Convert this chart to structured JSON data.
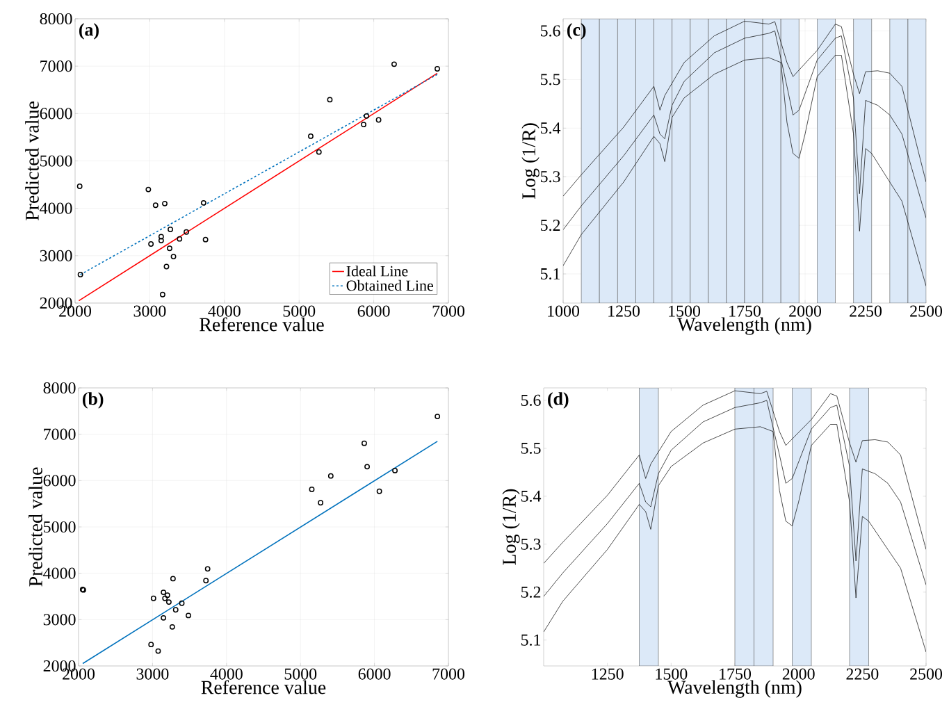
{
  "chart_data": [
    {
      "type": "scatter",
      "xlabel": "Reference value",
      "ylabel": "Predicted value",
      "xlim": [
        2000,
        7000
      ],
      "ylim": [
        2000,
        8000
      ],
      "xticks": [
        2000,
        3000,
        4000,
        5000,
        6000,
        7000
      ],
      "yticks": [
        2000,
        3000,
        4000,
        5000,
        6000,
        7000,
        8000
      ],
      "grid": true,
      "legend": "bottom right",
      "annotations": [
        "(a)"
      ],
      "series": [
        {
          "type": "scatter",
          "color": "#000000",
          "marker": "circle",
          "x": [
            2062,
            2071,
            2981,
            3078,
            3201,
            3016,
            3153,
            3153,
            3276,
            3266,
            3318,
            3224,
            3172,
            3399,
            3490,
            3721,
            3747,
            5156,
            5266,
            5412,
            5864,
            5903,
            6065,
            6273,
            6851
          ],
          "values": [
            4464,
            2601,
            4397,
            4064,
            4100,
            3247,
            3401,
            3319,
            3555,
            3155,
            2981,
            2770,
            2180,
            3355,
            3499,
            4115,
            3340,
            5522,
            5188,
            6292,
            5768,
            5948,
            5866,
            7041,
            6944
          ]
        },
        {
          "type": "line",
          "name": "Ideal Line",
          "color": "#ff0000",
          "line_style": "solid",
          "x": [
            2050,
            6850
          ],
          "values": [
            2050,
            6850
          ]
        },
        {
          "type": "line",
          "name": "Obtained Line",
          "color": "#0072bd",
          "line_style": "dashed",
          "x": [
            2070,
            6850
          ],
          "values": [
            2600,
            6825
          ]
        }
      ]
    },
    {
      "type": "line",
      "xlabel": "Wavelength (nm)",
      "ylabel": "Log (1/R)",
      "xlim": [
        1000,
        2500
      ],
      "ylim": [
        5.04,
        5.625
      ],
      "xticks": [
        1000,
        1250,
        1500,
        1750,
        2000,
        2250,
        2500
      ],
      "yticks": [
        5.1,
        5.2,
        5.3,
        5.4,
        5.5,
        5.6
      ],
      "grid": true,
      "annotations": [
        "(c)"
      ],
      "bands": [
        {
          "axis": "x",
          "from": 1075,
          "to": 1150,
          "color": "#dce9f8"
        },
        {
          "axis": "x",
          "from": 1150,
          "to": 1225,
          "color": "#dce9f8"
        },
        {
          "axis": "x",
          "from": 1225,
          "to": 1300,
          "color": "#dce9f8"
        },
        {
          "axis": "x",
          "from": 1300,
          "to": 1375,
          "color": "#dce9f8"
        },
        {
          "axis": "x",
          "from": 1375,
          "to": 1450,
          "color": "#dce9f8"
        },
        {
          "axis": "x",
          "from": 1450,
          "to": 1525,
          "color": "#dce9f8"
        },
        {
          "axis": "x",
          "from": 1525,
          "to": 1600,
          "color": "#dce9f8"
        },
        {
          "axis": "x",
          "from": 1600,
          "to": 1675,
          "color": "#dce9f8"
        },
        {
          "axis": "x",
          "from": 1675,
          "to": 1750,
          "color": "#dce9f8"
        },
        {
          "axis": "x",
          "from": 1750,
          "to": 1825,
          "color": "#dce9f8"
        },
        {
          "axis": "x",
          "from": 1825,
          "to": 1900,
          "color": "#dce9f8"
        },
        {
          "axis": "x",
          "from": 1900,
          "to": 1975,
          "color": "#dce9f8"
        },
        {
          "axis": "x",
          "from": 2050,
          "to": 2125,
          "color": "#dce9f8"
        },
        {
          "axis": "x",
          "from": 2200,
          "to": 2275,
          "color": "#dce9f8"
        },
        {
          "axis": "x",
          "from": 2350,
          "to": 2425,
          "color": "#dce9f8"
        },
        {
          "axis": "x",
          "from": 2425,
          "to": 2500,
          "color": "#dce9f8"
        }
      ],
      "series": [
        {
          "color": "#000000",
          "x": [
            1000,
            1075,
            1250,
            1375,
            1400,
            1420,
            1500,
            1625,
            1750,
            1850,
            1875,
            1925,
            1950,
            2050,
            2125,
            2150,
            2200,
            2225,
            2250,
            2300,
            2350,
            2400,
            2500
          ],
          "values": [
            5.26,
            5.304,
            5.402,
            5.486,
            5.437,
            5.467,
            5.535,
            5.59,
            5.62,
            5.614,
            5.619,
            5.535,
            5.506,
            5.56,
            5.614,
            5.609,
            5.511,
            5.471,
            5.516,
            5.518,
            5.513,
            5.486,
            5.289
          ]
        },
        {
          "color": "#000000",
          "x": [
            1000,
            1075,
            1250,
            1375,
            1400,
            1420,
            1450,
            1500,
            1625,
            1750,
            1850,
            1875,
            1925,
            1950,
            1975,
            2050,
            2125,
            2150,
            2200,
            2225,
            2250,
            2300,
            2350,
            2400,
            2500
          ],
          "values": [
            5.191,
            5.24,
            5.343,
            5.427,
            5.388,
            5.378,
            5.447,
            5.496,
            5.555,
            5.585,
            5.595,
            5.6,
            5.486,
            5.427,
            5.437,
            5.54,
            5.585,
            5.59,
            5.462,
            5.265,
            5.457,
            5.447,
            5.427,
            5.388,
            5.215
          ]
        },
        {
          "color": "#000000",
          "x": [
            1000,
            1075,
            1250,
            1375,
            1400,
            1420,
            1450,
            1500,
            1625,
            1750,
            1850,
            1900,
            1925,
            1950,
            1975,
            2000,
            2050,
            2125,
            2150,
            2200,
            2225,
            2250,
            2275,
            2350,
            2400,
            2500
          ],
          "values": [
            5.117,
            5.181,
            5.289,
            5.383,
            5.368,
            5.331,
            5.422,
            5.462,
            5.511,
            5.54,
            5.545,
            5.535,
            5.412,
            5.348,
            5.338,
            5.388,
            5.506,
            5.55,
            5.55,
            5.388,
            5.188,
            5.358,
            5.348,
            5.289,
            5.25,
            5.075
          ]
        }
      ]
    },
    {
      "type": "scatter",
      "xlabel": "Reference value",
      "ylabel": "Predicted value",
      "xlim": [
        2000,
        7000
      ],
      "ylim": [
        2000,
        8000
      ],
      "xticks": [
        2000,
        3000,
        4000,
        5000,
        6000,
        7000
      ],
      "yticks": [
        2000,
        3000,
        4000,
        5000,
        6000,
        7000,
        8000
      ],
      "grid": true,
      "annotations": [
        "(b)"
      ],
      "series": [
        {
          "type": "scatter",
          "color": "#000000",
          "marker": "circle",
          "x": [
            2055,
            2065,
            2980,
            3076,
            3013,
            3148,
            3201,
            3168,
            3221,
            3277,
            3148,
            3313,
            3396,
            3267,
            3485,
            3722,
            3745,
            5153,
            5272,
            5410,
            5862,
            5901,
            6066,
            6277,
            6851
          ],
          "values": [
            3650,
            3640,
            2463,
            2321,
            3458,
            3589,
            3526,
            3458,
            3379,
            3884,
            3037,
            3211,
            3353,
            2842,
            3089,
            3842,
            4095,
            5811,
            5521,
            6100,
            6805,
            6300,
            5768,
            6216,
            7384
          ]
        },
        {
          "type": "line",
          "color": "#0072bd",
          "line_style": "solid",
          "x": [
            2057,
            6851
          ],
          "values": [
            2053,
            6847
          ]
        }
      ]
    },
    {
      "type": "line",
      "xlabel": "Wavelength (nm)",
      "ylabel": "Log (1/R)",
      "xlim": [
        1000,
        2500
      ],
      "ylim": [
        5.046,
        5.626
      ],
      "xticks": [
        1250,
        1500,
        1750,
        2000,
        2250,
        2500
      ],
      "yticks": [
        5.1,
        5.2,
        5.3,
        5.4,
        5.5,
        5.6
      ],
      "annotations": [
        "(d)"
      ],
      "bands": [
        {
          "axis": "x",
          "from": 1375,
          "to": 1450,
          "color": "#dce9f8"
        },
        {
          "axis": "x",
          "from": 1750,
          "to": 1825,
          "color": "#dce9f8"
        },
        {
          "axis": "x",
          "from": 1825,
          "to": 1900,
          "color": "#dce9f8"
        },
        {
          "axis": "x",
          "from": 1975,
          "to": 2050,
          "color": "#dce9f8"
        },
        {
          "axis": "x",
          "from": 2200,
          "to": 2275,
          "color": "#dce9f8"
        }
      ],
      "series": [
        {
          "color": "#000000",
          "x": [
            1000,
            1075,
            1250,
            1375,
            1400,
            1420,
            1500,
            1625,
            1750,
            1850,
            1875,
            1925,
            1950,
            2050,
            2125,
            2150,
            2200,
            2225,
            2250,
            2300,
            2350,
            2400,
            2500
          ],
          "values": [
            5.26,
            5.304,
            5.402,
            5.486,
            5.437,
            5.467,
            5.535,
            5.59,
            5.62,
            5.614,
            5.619,
            5.535,
            5.506,
            5.56,
            5.614,
            5.609,
            5.511,
            5.471,
            5.516,
            5.518,
            5.513,
            5.486,
            5.289
          ]
        },
        {
          "color": "#000000",
          "x": [
            1000,
            1075,
            1250,
            1375,
            1400,
            1420,
            1450,
            1500,
            1625,
            1750,
            1850,
            1875,
            1925,
            1950,
            1975,
            2050,
            2125,
            2150,
            2200,
            2225,
            2250,
            2300,
            2350,
            2400,
            2500
          ],
          "values": [
            5.191,
            5.24,
            5.343,
            5.427,
            5.388,
            5.378,
            5.447,
            5.496,
            5.555,
            5.585,
            5.595,
            5.6,
            5.486,
            5.427,
            5.437,
            5.54,
            5.585,
            5.59,
            5.462,
            5.265,
            5.457,
            5.447,
            5.427,
            5.388,
            5.215
          ]
        },
        {
          "color": "#000000",
          "x": [
            1000,
            1075,
            1250,
            1375,
            1400,
            1420,
            1450,
            1500,
            1625,
            1750,
            1850,
            1900,
            1925,
            1950,
            1975,
            2000,
            2050,
            2125,
            2150,
            2200,
            2225,
            2250,
            2275,
            2350,
            2400,
            2500
          ],
          "values": [
            5.117,
            5.181,
            5.289,
            5.383,
            5.368,
            5.331,
            5.422,
            5.462,
            5.511,
            5.54,
            5.545,
            5.535,
            5.412,
            5.348,
            5.338,
            5.388,
            5.506,
            5.55,
            5.55,
            5.388,
            5.188,
            5.358,
            5.348,
            5.289,
            5.25,
            5.075
          ]
        }
      ]
    }
  ]
}
